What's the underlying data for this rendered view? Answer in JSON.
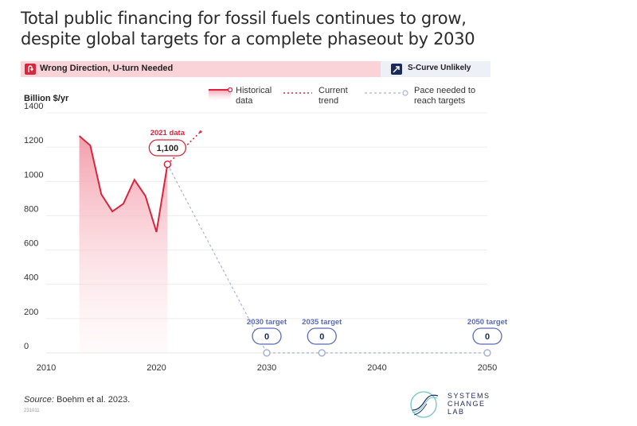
{
  "title": "Total public financing for fossil fuels continues to grow, despite global targets for a complete phaseout by 2030",
  "banner": {
    "left_label": "Wrong Direction, U-turn Needed",
    "right_label": "S-Curve Unlikely"
  },
  "legend": {
    "historical": "Historical\ndata",
    "current": "Current\ntrend",
    "pace": "Pace needed to\nreach targets"
  },
  "footer": {
    "source_prefix": "Source:",
    "source_text": " Boehm et al. 2023.",
    "code": "231011"
  },
  "logo": {
    "line1": "SYSTEMS",
    "line2": "CHANGE",
    "line3": "LAB"
  },
  "colors": {
    "historical": "#d7263d",
    "target": "#5b6bb5",
    "fill_top": "#f4a3b0"
  },
  "chart_data": {
    "type": "line",
    "ylabel": "Billion $/yr",
    "ylim": [
      0,
      1400
    ],
    "xlim": [
      2010,
      2050
    ],
    "yticks": [
      0,
      200,
      400,
      600,
      800,
      1000,
      1200,
      1400
    ],
    "xticks": [
      2010,
      2020,
      2030,
      2040,
      2050
    ],
    "grid": true,
    "series": [
      {
        "name": "Historical data",
        "style": "solid-area",
        "x": [
          2013,
          2014,
          2015,
          2016,
          2017,
          2018,
          2019,
          2020,
          2021
        ],
        "y": [
          1265,
          1210,
          925,
          825,
          870,
          1010,
          915,
          705,
          1100
        ]
      },
      {
        "name": "Current trend",
        "style": "dotted",
        "x": [
          2021,
          2024
        ],
        "y": [
          1100,
          1290
        ]
      },
      {
        "name": "Pace needed to reach targets",
        "style": "dashed",
        "x": [
          2021,
          2030,
          2035,
          2050
        ],
        "y": [
          1100,
          0,
          0,
          0
        ]
      }
    ],
    "annotations": [
      {
        "label": "2021 data",
        "value": "1,100",
        "x": 2021,
        "y": 1100,
        "color": "#d7263d"
      },
      {
        "label": "2030 target",
        "value": "0",
        "x": 2030,
        "y": 0,
        "color": "#5b6bb5"
      },
      {
        "label": "2035 target",
        "value": "0",
        "x": 2035,
        "y": 0,
        "color": "#5b6bb5"
      },
      {
        "label": "2050 target",
        "value": "0",
        "x": 2050,
        "y": 0,
        "color": "#5b6bb5"
      }
    ]
  }
}
